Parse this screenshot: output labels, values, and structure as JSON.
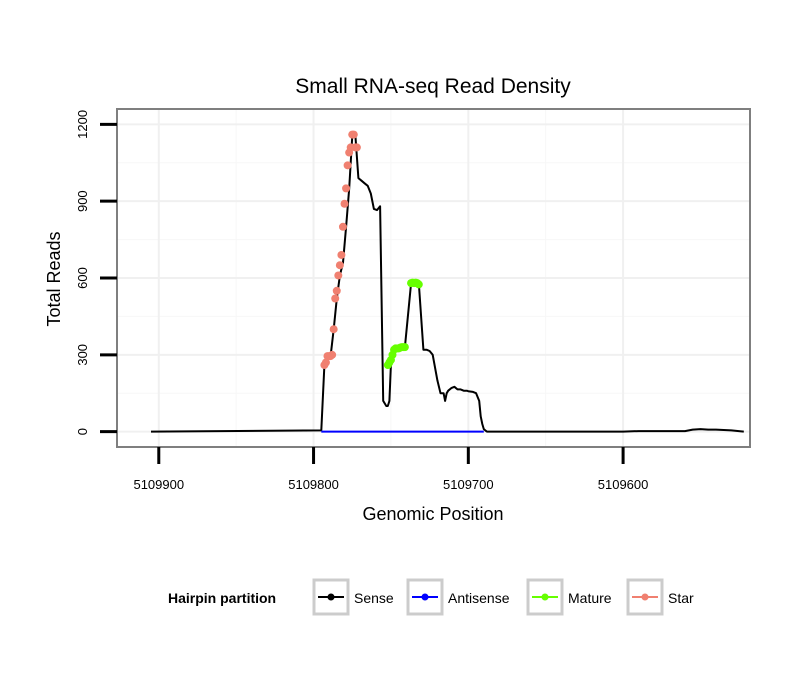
{
  "chart_data": {
    "type": "line",
    "title": "Small RNA-seq Read Density",
    "xlabel": "Genomic Position",
    "ylabel": "Total Reads",
    "xlim": [
      5109927,
      5109518
    ],
    "ylim": [
      -60,
      1260
    ],
    "x_reversed": true,
    "x_ticks": [
      5109900,
      5109800,
      5109700,
      5109600
    ],
    "x_tick_labels": [
      "5109900",
      "5109800",
      "5109700",
      "5109600"
    ],
    "y_ticks": [
      0,
      300,
      600,
      900,
      1200
    ],
    "y_tick_labels": [
      "0",
      "300",
      "600",
      "900",
      "1200"
    ],
    "grid": true,
    "legend_position": "bottom",
    "legend_title": "Hairpin partition",
    "series": [
      {
        "name": "Sense",
        "color": "#000000",
        "x": [
          5109905,
          5109795,
          5109793,
          5109791,
          5109789,
          5109787,
          5109785,
          5109783,
          5109781,
          5109779,
          5109777,
          5109775,
          5109773,
          5109771,
          5109769,
          5109767,
          5109765,
          5109763,
          5109761,
          5109759,
          5109757,
          5109755,
          5109753,
          5109752,
          5109751,
          5109750,
          5109749,
          5109748,
          5109747,
          5109745,
          5109743,
          5109741,
          5109737,
          5109736,
          5109735,
          5109734,
          5109733,
          5109732,
          5109729,
          5109727,
          5109725,
          5109723,
          5109720,
          5109718,
          5109716,
          5109715,
          5109714,
          5109713,
          5109711,
          5109709,
          5109707,
          5109705,
          5109703,
          5109701,
          5109700,
          5109697,
          5109695,
          5109693,
          5109692,
          5109691,
          5109690,
          5109689,
          5109688,
          5109620,
          5109600,
          5109590,
          5109570,
          5109560,
          5109555,
          5109550,
          5109545,
          5109540,
          5109530,
          5109522
        ],
        "values": [
          0,
          5,
          260,
          295,
          295,
          400,
          520,
          610,
          660,
          800,
          950,
          1150,
          1160,
          990,
          980,
          970,
          960,
          930,
          870,
          865,
          880,
          120,
          100,
          100,
          120,
          260,
          300,
          320,
          330,
          330,
          330,
          330,
          580,
          580,
          580,
          580,
          580,
          580,
          320,
          320,
          315,
          300,
          200,
          150,
          150,
          120,
          150,
          160,
          170,
          175,
          165,
          165,
          160,
          160,
          158,
          155,
          150,
          120,
          60,
          30,
          10,
          5,
          0,
          0,
          0,
          2,
          2,
          2,
          8,
          10,
          8,
          8,
          5,
          0
        ]
      },
      {
        "name": "Antisense",
        "color": "#0000ff",
        "x": [
          5109795,
          5109690
        ],
        "values": [
          0,
          0
        ]
      },
      {
        "name": "Mature",
        "color": "#66ff00",
        "x": [
          5109752,
          5109751,
          5109750,
          5109749,
          5109748,
          5109747,
          5109746,
          5109745,
          5109744,
          5109743,
          5109742,
          5109741,
          5109737,
          5109736,
          5109735,
          5109734,
          5109733,
          5109732
        ],
        "values": [
          260,
          270,
          280,
          300,
          320,
          325,
          325,
          325,
          328,
          330,
          330,
          330,
          580,
          582,
          580,
          582,
          580,
          575
        ]
      },
      {
        "name": "Star",
        "color": "#f08070",
        "x": [
          5109793,
          5109792,
          5109791,
          5109790,
          5109789,
          5109788,
          5109787,
          5109786,
          5109785,
          5109784,
          5109783,
          5109782,
          5109781,
          5109780,
          5109779,
          5109778,
          5109777,
          5109776,
          5109775,
          5109774,
          5109773,
          5109772
        ],
        "values": [
          260,
          270,
          295,
          295,
          295,
          300,
          400,
          520,
          550,
          610,
          650,
          690,
          800,
          890,
          950,
          1040,
          1090,
          1110,
          1160,
          1160,
          1110,
          1110
        ]
      }
    ]
  }
}
